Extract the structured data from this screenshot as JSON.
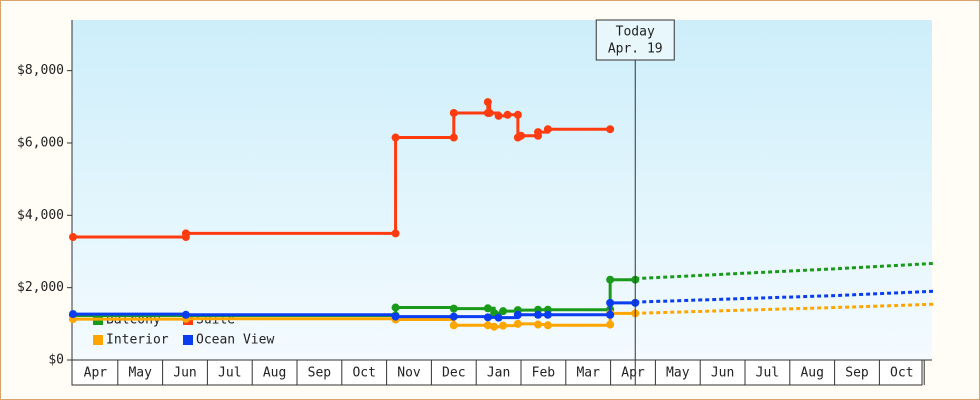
{
  "chart_data": {
    "type": "step-line",
    "xlim": [
      0,
      19.2
    ],
    "xticks": [
      {
        "value": 0.5,
        "label": "Apr"
      },
      {
        "value": 1.5,
        "label": "May"
      },
      {
        "value": 2.5,
        "label": "Jun"
      },
      {
        "value": 3.5,
        "label": "Jul"
      },
      {
        "value": 4.5,
        "label": "Aug"
      },
      {
        "value": 5.5,
        "label": "Sep"
      },
      {
        "value": 6.5,
        "label": "Oct"
      },
      {
        "value": 7.5,
        "label": "Nov"
      },
      {
        "value": 8.5,
        "label": "Dec"
      },
      {
        "value": 9.5,
        "label": "Jan"
      },
      {
        "value": 10.5,
        "label": "Feb"
      },
      {
        "value": 11.5,
        "label": "Mar"
      },
      {
        "value": 12.5,
        "label": "Apr"
      },
      {
        "value": 13.5,
        "label": "May"
      },
      {
        "value": 14.5,
        "label": "Jun"
      },
      {
        "value": 15.5,
        "label": "Jul"
      },
      {
        "value": 16.5,
        "label": "Aug"
      },
      {
        "value": 17.5,
        "label": "Sep"
      },
      {
        "value": 18.5,
        "label": "Oct"
      }
    ],
    "ylim": [
      0,
      9400
    ],
    "yticks": [
      {
        "value": 0,
        "label": "$0"
      },
      {
        "value": 2000,
        "label": "$2,000"
      },
      {
        "value": 4000,
        "label": "$4,000"
      },
      {
        "value": 6000,
        "label": "$6,000"
      },
      {
        "value": 8000,
        "label": "$8,000"
      }
    ],
    "legend": "lower left",
    "annotation": {
      "x": 12.55,
      "lines": [
        "Today",
        "Apr. 19"
      ]
    },
    "series": [
      {
        "name": "Balcony",
        "color": "#1a9a1a",
        "x": [
          0,
          2.52,
          7.2,
          7.2,
          8.5,
          9.26,
          9.4,
          9.6,
          9.93,
          10.38,
          10.6,
          11.99,
          11.99,
          12.55
        ],
        "values": [
          1230,
          1230,
          1230,
          1450,
          1420,
          1430,
          1300,
          1350,
          1380,
          1390,
          1390,
          1400,
          2220,
          2220
        ],
        "forecast": {
          "x": [
            12.55,
            15,
            17,
            19.2
          ],
          "values": [
            2250,
            2400,
            2520,
            2670
          ]
        }
      },
      {
        "name": "Suite",
        "color": "#ff3c10",
        "x": [
          0,
          2.52,
          2.52,
          7.2,
          7.2,
          8.5,
          8.5,
          9.26,
          9.26,
          9.3,
          9.5,
          9.7,
          9.93,
          9.93,
          10.0,
          10.38,
          10.38,
          10.6,
          11.99
        ],
        "values": [
          3400,
          3400,
          3500,
          3500,
          6150,
          6150,
          6830,
          6830,
          7130,
          6830,
          6750,
          6780,
          6780,
          6150,
          6200,
          6200,
          6300,
          6380,
          6380
        ]
      },
      {
        "name": "Interior",
        "color": "#ffa500",
        "x": [
          0,
          2.52,
          7.2,
          8.5,
          9.26,
          9.4,
          9.6,
          9.93,
          10.38,
          10.6,
          11.99,
          11.99,
          12.55
        ],
        "values": [
          1130,
          1140,
          1120,
          960,
          960,
          920,
          950,
          1000,
          980,
          960,
          980,
          1290,
          1290
        ],
        "forecast": {
          "x": [
            12.55,
            15,
            17,
            19.2
          ],
          "values": [
            1290,
            1380,
            1450,
            1540
          ]
        }
      },
      {
        "name": "Ocean View",
        "color": "#0a3cf0",
        "x": [
          0,
          2.52,
          7.2,
          8.5,
          9.26,
          9.5,
          9.93,
          10.38,
          10.6,
          11.99,
          11.99,
          12.55
        ],
        "values": [
          1270,
          1250,
          1200,
          1200,
          1180,
          1170,
          1250,
          1250,
          1250,
          1250,
          1580,
          1580
        ],
        "forecast": {
          "x": [
            12.55,
            15,
            17,
            19.2
          ],
          "values": [
            1600,
            1700,
            1780,
            1900
          ]
        }
      }
    ]
  }
}
